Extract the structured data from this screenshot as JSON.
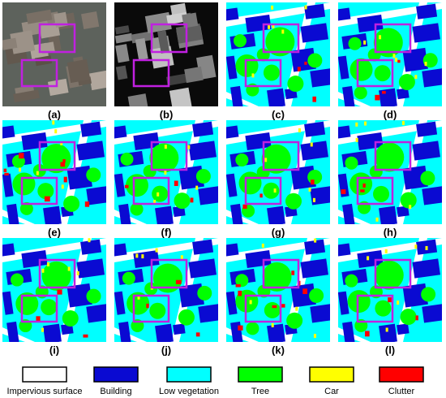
{
  "panels": [
    {
      "label": "(a)"
    },
    {
      "label": "(b)"
    },
    {
      "label": "(c)"
    },
    {
      "label": "(d)"
    },
    {
      "label": "(e)"
    },
    {
      "label": "(f)"
    },
    {
      "label": "(g)"
    },
    {
      "label": "(h)"
    },
    {
      "label": "(i)"
    },
    {
      "label": "(j)"
    },
    {
      "label": "(k)"
    },
    {
      "label": "(l)"
    }
  ],
  "legend": [
    {
      "label": "Impervious surface",
      "color": "#ffffff"
    },
    {
      "label": "Building",
      "color": "#0a0ad2"
    },
    {
      "label": "Low vegetation",
      "color": "#00ffff"
    },
    {
      "label": "Tree",
      "color": "#00ff00"
    },
    {
      "label": "Car",
      "color": "#ffff00"
    },
    {
      "label": "Clutter",
      "color": "#ff0000"
    }
  ]
}
